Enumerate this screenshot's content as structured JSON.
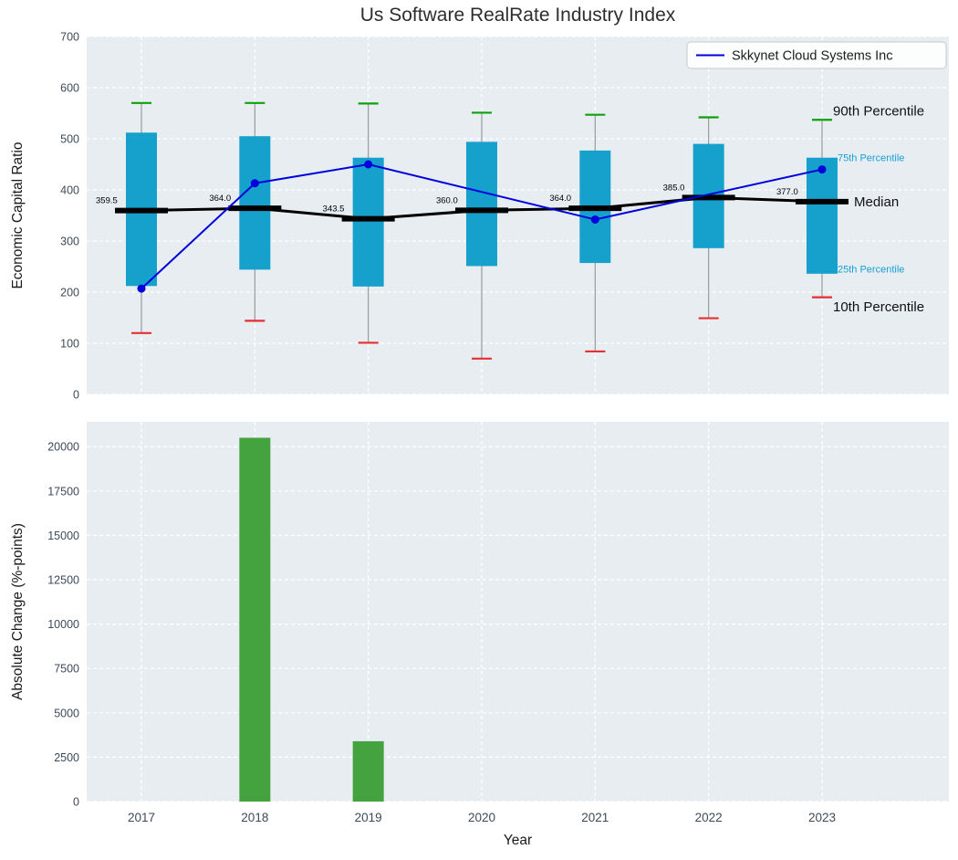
{
  "chart_data": [
    {
      "type": "box",
      "title": "Us Software RealRate Industry Index",
      "ylabel": "Economic Capital Ratio",
      "ylim": [
        0,
        700
      ],
      "yticks": [
        0,
        100,
        200,
        300,
        400,
        500,
        600,
        700
      ],
      "categories": [
        "2017",
        "2018",
        "2019",
        "2020",
        "2021",
        "2022",
        "2023"
      ],
      "series": {
        "p90": [
          570,
          570,
          569,
          551,
          547,
          542,
          537
        ],
        "p75": [
          512,
          505,
          463,
          494,
          477,
          490,
          463
        ],
        "median": [
          359.5,
          364.0,
          343.5,
          360.0,
          364.0,
          385.0,
          377.0
        ],
        "p25": [
          212,
          244,
          211,
          251,
          257,
          286,
          236
        ],
        "p10": [
          120,
          144,
          101,
          70,
          84,
          149,
          190
        ],
        "company": [
          207,
          413,
          450,
          null,
          342,
          null,
          440
        ]
      },
      "legend": [
        {
          "label": "Skkynet Cloud Systems Inc",
          "color": "#0000dd"
        }
      ],
      "right_labels": [
        {
          "text": "90th Percentile",
          "color": "#111111",
          "size": 15
        },
        {
          "text": "75th Percentile",
          "color": "#169fd4",
          "size": 11
        },
        {
          "text": "Median",
          "color": "#111111",
          "size": 15
        },
        {
          "text": "25th Percentile",
          "color": "#169fd4",
          "size": 11
        },
        {
          "text": "10th Percentile",
          "color": "#111111",
          "size": 15
        }
      ],
      "colors": {
        "plot_bg": "#e8edf2",
        "grid": "#ffffff",
        "box_fill": "#16a1cd",
        "median": "#000000",
        "company": "#0000dd",
        "cap_top": "#0da10d",
        "cap_bottom": "#e53030",
        "whisker": "#999999",
        "tick": "#3d4a5c"
      }
    },
    {
      "type": "bar",
      "ylabel": "Absolute Change (%-points)",
      "xlabel": "Year",
      "categories": [
        "2017",
        "2018",
        "2019",
        "2020",
        "2021",
        "2022",
        "2023"
      ],
      "values": [
        0,
        20500,
        3400,
        0,
        0,
        0,
        0
      ],
      "ylim": [
        0,
        21400
      ],
      "yticks": [
        0,
        2500,
        5000,
        7500,
        10000,
        12500,
        15000,
        17500,
        20000
      ],
      "bar_color": "#44a33e"
    }
  ]
}
